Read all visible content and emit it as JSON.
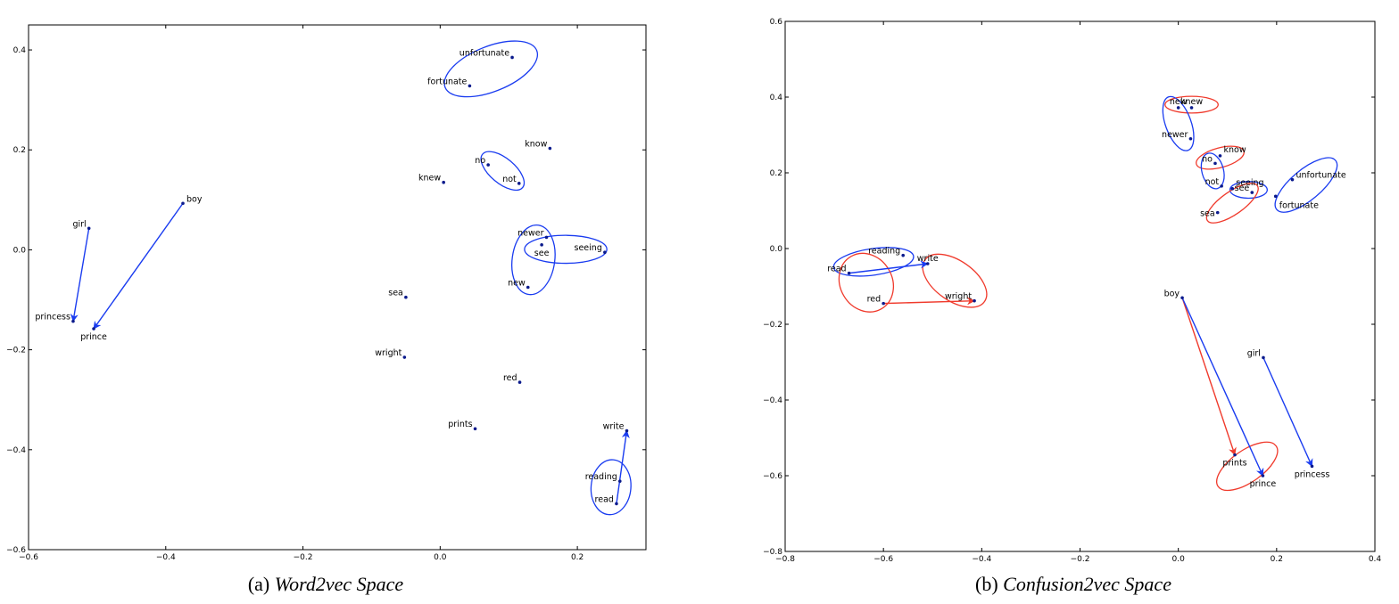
{
  "chart_data": [
    {
      "type": "scatter",
      "caption_prefix": "(a) ",
      "caption_title": "Word2vec Space",
      "xlim": [
        -0.6,
        0.3
      ],
      "ylim": [
        -0.6,
        0.45
      ],
      "xticks": [
        -0.6,
        -0.4,
        -0.2,
        0.0,
        0.2
      ],
      "xtick_labels": [
        "−0.6",
        "−0.4",
        "−0.2",
        "0.0",
        "0.2"
      ],
      "yticks": [
        -0.6,
        -0.4,
        -0.2,
        0.0,
        0.2,
        0.4
      ],
      "ytick_labels": [
        "−0.6",
        "−0.4",
        "−0.2",
        "0.0",
        "0.2",
        "0.4"
      ],
      "grid": false,
      "points": [
        {
          "word": "unfortunate",
          "x": 0.105,
          "y": 0.385,
          "anchor": "end"
        },
        {
          "word": "fortunate",
          "x": 0.043,
          "y": 0.328,
          "anchor": "end"
        },
        {
          "word": "know",
          "x": 0.16,
          "y": 0.203,
          "anchor": "end"
        },
        {
          "word": "no",
          "x": 0.07,
          "y": 0.17,
          "anchor": "end"
        },
        {
          "word": "not",
          "x": 0.115,
          "y": 0.133,
          "anchor": "end"
        },
        {
          "word": "knew",
          "x": 0.005,
          "y": 0.135,
          "anchor": "end"
        },
        {
          "word": "boy",
          "x": -0.375,
          "y": 0.093,
          "anchor": "start"
        },
        {
          "word": "girl",
          "x": -0.512,
          "y": 0.043,
          "anchor": "end"
        },
        {
          "word": "newer",
          "x": 0.155,
          "y": 0.025,
          "anchor": "end"
        },
        {
          "word": "see",
          "x": 0.148,
          "y": 0.01,
          "anchor": "middle",
          "dy": 12
        },
        {
          "word": "seeing",
          "x": 0.24,
          "y": -0.005,
          "anchor": "end"
        },
        {
          "word": "new",
          "x": 0.128,
          "y": -0.075,
          "anchor": "end"
        },
        {
          "word": "sea",
          "x": -0.05,
          "y": -0.095,
          "anchor": "end"
        },
        {
          "word": "princess",
          "x": -0.535,
          "y": -0.143,
          "anchor": "end"
        },
        {
          "word": "prince",
          "x": -0.505,
          "y": -0.158,
          "anchor": "middle",
          "dy": 12
        },
        {
          "word": "wright",
          "x": -0.052,
          "y": -0.215,
          "anchor": "end"
        },
        {
          "word": "red",
          "x": 0.116,
          "y": -0.265,
          "anchor": "end"
        },
        {
          "word": "prints",
          "x": 0.051,
          "y": -0.358,
          "anchor": "end"
        },
        {
          "word": "write",
          "x": 0.272,
          "y": -0.362,
          "anchor": "end"
        },
        {
          "word": "reading",
          "x": 0.262,
          "y": -0.463,
          "anchor": "end"
        },
        {
          "word": "read",
          "x": 0.257,
          "y": -0.508,
          "anchor": "end"
        }
      ],
      "arrows": [
        {
          "from": "girl",
          "to": "princess",
          "color": "#1a3cf0"
        },
        {
          "from": "boy",
          "to": "prince",
          "color": "#1a3cf0"
        },
        {
          "from": "read",
          "to": "write",
          "color": "#1a3cf0"
        }
      ],
      "ellipses": [
        {
          "cx": 0.074,
          "cy": 0.362,
          "rx": 0.072,
          "ry": 0.045,
          "angle": -22,
          "color": "#1a3cf0"
        },
        {
          "cx": 0.091,
          "cy": 0.158,
          "rx": 0.038,
          "ry": 0.025,
          "angle": 40,
          "color": "#1a3cf0"
        },
        {
          "cx": 0.136,
          "cy": -0.02,
          "rx": 0.031,
          "ry": 0.07,
          "angle": 8,
          "color": "#1a3cf0"
        },
        {
          "cx": 0.183,
          "cy": 0.001,
          "rx": 0.06,
          "ry": 0.028,
          "angle": 0,
          "color": "#1a3cf0"
        },
        {
          "cx": 0.249,
          "cy": -0.475,
          "rx": 0.029,
          "ry": 0.055,
          "angle": 5,
          "color": "#1a3cf0"
        }
      ]
    },
    {
      "type": "scatter",
      "caption_prefix": "(b) ",
      "caption_title": "Confusion2vec Space",
      "xlim": [
        -0.8,
        0.4
      ],
      "ylim": [
        -0.8,
        0.6
      ],
      "xticks": [
        -0.8,
        -0.6,
        -0.4,
        -0.2,
        0.0,
        0.2,
        0.4
      ],
      "xtick_labels": [
        "−0.8",
        "−0.6",
        "−0.4",
        "−0.2",
        "0.0",
        "0.2",
        "0.4"
      ],
      "yticks": [
        -0.8,
        -0.6,
        -0.4,
        -0.2,
        0.0,
        0.2,
        0.4,
        0.6
      ],
      "ytick_labels": [
        "−0.8",
        "−0.6",
        "−0.4",
        "−0.2",
        "0.0",
        "0.2",
        "0.4",
        "0.6"
      ],
      "grid": false,
      "points": [
        {
          "word": "new",
          "x": 0.0,
          "y": 0.372,
          "anchor": "middle",
          "dy": -4
        },
        {
          "word": "knew",
          "x": 0.027,
          "y": 0.372,
          "anchor": "middle",
          "dy": -4
        },
        {
          "word": "newer",
          "x": 0.025,
          "y": 0.29,
          "anchor": "end"
        },
        {
          "word": "know",
          "x": 0.085,
          "y": 0.245,
          "anchor": "start",
          "dy": -4
        },
        {
          "word": "no",
          "x": 0.075,
          "y": 0.225,
          "anchor": "end"
        },
        {
          "word": "unfortunate",
          "x": 0.232,
          "y": 0.182,
          "anchor": "start"
        },
        {
          "word": "not",
          "x": 0.088,
          "y": 0.165,
          "anchor": "end"
        },
        {
          "word": "seeing",
          "x": 0.11,
          "y": 0.158,
          "anchor": "start",
          "dy": -4
        },
        {
          "word": "see",
          "x": 0.15,
          "y": 0.148,
          "anchor": "end",
          "dy": -2
        },
        {
          "word": "fortunate",
          "x": 0.198,
          "y": 0.138,
          "anchor": "start",
          "dy": 13
        },
        {
          "word": "sea",
          "x": 0.08,
          "y": 0.095,
          "anchor": "end",
          "dy": 4
        },
        {
          "word": "reading",
          "x": -0.56,
          "y": -0.018,
          "anchor": "end"
        },
        {
          "word": "write",
          "x": -0.51,
          "y": -0.04,
          "anchor": "middle",
          "dy": -3
        },
        {
          "word": "read",
          "x": -0.67,
          "y": -0.065,
          "anchor": "end"
        },
        {
          "word": "wright",
          "x": -0.415,
          "y": -0.138,
          "anchor": "end"
        },
        {
          "word": "red",
          "x": -0.6,
          "y": -0.145,
          "anchor": "end"
        },
        {
          "word": "boy",
          "x": 0.008,
          "y": -0.13,
          "anchor": "end"
        },
        {
          "word": "girl",
          "x": 0.173,
          "y": -0.288,
          "anchor": "end"
        },
        {
          "word": "prints",
          "x": 0.115,
          "y": -0.545,
          "anchor": "middle",
          "dy": 12
        },
        {
          "word": "princess",
          "x": 0.272,
          "y": -0.575,
          "anchor": "middle",
          "dy": 12
        },
        {
          "word": "prince",
          "x": 0.172,
          "y": -0.6,
          "anchor": "middle",
          "dy": 12
        }
      ],
      "arrows": [
        {
          "from": "boy",
          "to": "prints",
          "color": "#f03a2c"
        },
        {
          "from": "boy",
          "to": "prince",
          "color": "#1a3cf0"
        },
        {
          "from": "girl",
          "to": "princess",
          "color": "#1a3cf0"
        },
        {
          "from": "read",
          "to": "write",
          "color": "#1a3cf0"
        },
        {
          "from": "red",
          "to": "wright",
          "color": "#f03a2c"
        }
      ],
      "ellipses": [
        {
          "cx": 0.027,
          "cy": 0.38,
          "rx": 0.054,
          "ry": 0.022,
          "angle": 0,
          "color": "#f03a2c"
        },
        {
          "cx": 0.0,
          "cy": 0.33,
          "rx": 0.026,
          "ry": 0.075,
          "angle": -20,
          "color": "#1a3cf0"
        },
        {
          "cx": 0.085,
          "cy": 0.24,
          "rx": 0.05,
          "ry": 0.026,
          "angle": -15,
          "color": "#f03a2c"
        },
        {
          "cx": 0.07,
          "cy": 0.205,
          "rx": 0.022,
          "ry": 0.048,
          "angle": -15,
          "color": "#1a3cf0"
        },
        {
          "cx": 0.143,
          "cy": 0.155,
          "rx": 0.038,
          "ry": 0.022,
          "angle": 0,
          "color": "#1a3cf0"
        },
        {
          "cx": 0.11,
          "cy": 0.12,
          "rx": 0.062,
          "ry": 0.03,
          "angle": -35,
          "color": "#f03a2c"
        },
        {
          "cx": 0.26,
          "cy": 0.168,
          "rx": 0.078,
          "ry": 0.04,
          "angle": -40,
          "color": "#1a3cf0"
        },
        {
          "cx": -0.62,
          "cy": -0.035,
          "rx": 0.082,
          "ry": 0.035,
          "angle": -8,
          "color": "#1a3cf0"
        },
        {
          "cx": -0.635,
          "cy": -0.09,
          "rx": 0.053,
          "ry": 0.08,
          "angle": -30,
          "color": "#f03a2c"
        },
        {
          "cx": -0.455,
          "cy": -0.085,
          "rx": 0.074,
          "ry": 0.053,
          "angle": 35,
          "color": "#f03a2c"
        },
        {
          "cx": 0.14,
          "cy": -0.575,
          "rx": 0.072,
          "ry": 0.042,
          "angle": -35,
          "color": "#f03a2c"
        }
      ]
    }
  ]
}
